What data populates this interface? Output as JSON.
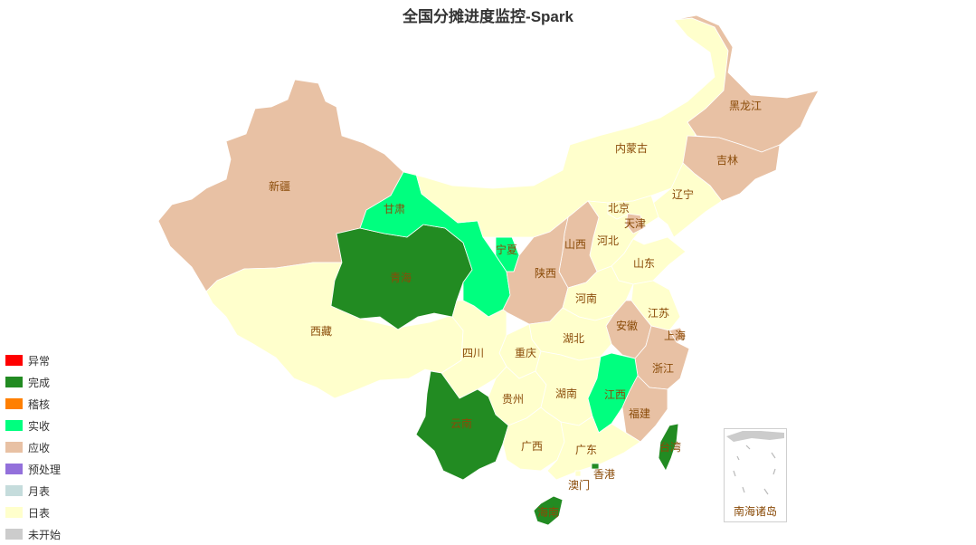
{
  "title": "全国分摊进度监控-Spark",
  "colors": {
    "yichang": "#ff0000",
    "wancheng": "#228b22",
    "jihe": "#ff7f00",
    "shishou": "#00ff7f",
    "yingshou": "#e8c1a4",
    "yuchuli": "#9370db",
    "yuebiao": "#c5dcdc",
    "ribiao": "#ffffcc",
    "weikaishi": "#cccccc"
  },
  "legend": [
    {
      "label": "异常",
      "color": "#ff0000"
    },
    {
      "label": "完成",
      "color": "#228b22"
    },
    {
      "label": "稽核",
      "color": "#ff7f00"
    },
    {
      "label": "实收",
      "color": "#00ff7f"
    },
    {
      "label": "应收",
      "color": "#e8c1a4"
    },
    {
      "label": "预处理",
      "color": "#9370db"
    },
    {
      "label": "月表",
      "color": "#c5dcdc"
    },
    {
      "label": "日表",
      "color": "#ffffcc"
    },
    {
      "label": "未开始",
      "color": "#cccccc"
    }
  ],
  "provinces": {
    "heilongjiang": {
      "name": "黑龙江",
      "status": "应收"
    },
    "jilin": {
      "name": "吉林",
      "status": "应收"
    },
    "liaoning": {
      "name": "辽宁",
      "status": "日表"
    },
    "neimenggu": {
      "name": "内蒙古",
      "status": "日表"
    },
    "beijing": {
      "name": "北京",
      "status": "日表"
    },
    "tianjin": {
      "name": "天津",
      "status": "应收"
    },
    "hebei": {
      "name": "河北",
      "status": "日表"
    },
    "shanxi": {
      "name": "山西",
      "status": "应收"
    },
    "shandong": {
      "name": "山东",
      "status": "日表"
    },
    "henan": {
      "name": "河南",
      "status": "日表"
    },
    "shaanxi": {
      "name": "陕西",
      "status": "应收"
    },
    "ningxia": {
      "name": "宁夏",
      "status": "实收"
    },
    "gansu": {
      "name": "甘肃",
      "status": "实收"
    },
    "qinghai": {
      "name": "青海",
      "status": "完成"
    },
    "xinjiang": {
      "name": "新疆",
      "status": "应收"
    },
    "xizang": {
      "name": "西藏",
      "status": "日表"
    },
    "sichuan": {
      "name": "四川",
      "status": "日表"
    },
    "chongqing": {
      "name": "重庆",
      "status": "日表"
    },
    "hubei": {
      "name": "湖北",
      "status": "日表"
    },
    "anhui": {
      "name": "安徽",
      "status": "应收"
    },
    "jiangsu": {
      "name": "江苏",
      "status": "日表"
    },
    "shanghai": {
      "name": "上海",
      "status": "应收"
    },
    "zhejiang": {
      "name": "浙江",
      "status": "应收"
    },
    "jiangxi": {
      "name": "江西",
      "status": "实收"
    },
    "hunan": {
      "name": "湖南",
      "status": "日表"
    },
    "guizhou": {
      "name": "贵州",
      "status": "日表"
    },
    "yunnan": {
      "name": "云南",
      "status": "完成"
    },
    "guangxi": {
      "name": "广西",
      "status": "日表"
    },
    "guangdong": {
      "name": "广东",
      "status": "日表"
    },
    "fujian": {
      "name": "福建",
      "status": "应收"
    },
    "taiwan": {
      "name": "台湾",
      "status": "完成"
    },
    "hainan": {
      "name": "海南",
      "status": "完成"
    },
    "xianggang": {
      "name": "香港",
      "status": "完成"
    },
    "aomen": {
      "name": "澳门",
      "status": "日表"
    }
  },
  "inset_label": "南海诸岛"
}
